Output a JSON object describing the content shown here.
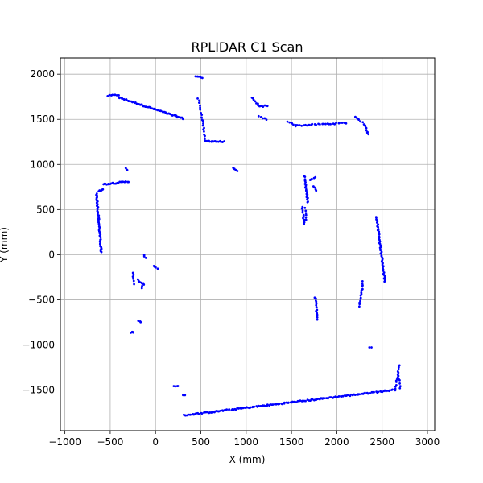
{
  "chart_data": {
    "type": "scatter",
    "title": "RPLIDAR C1 Scan",
    "xlabel": "X (mm)",
    "ylabel": "Y (mm)",
    "xlim": [
      -1050,
      3080
    ],
    "ylim": [
      -1950,
      2180
    ],
    "xticks": [
      -1000,
      -500,
      0,
      500,
      1000,
      1500,
      2000,
      2500,
      3000
    ],
    "yticks": [
      -1500,
      -1000,
      -500,
      0,
      500,
      1000,
      1500,
      2000
    ],
    "grid": true,
    "point_color": "#0000ff",
    "segments": [
      {
        "from": [
          -530,
          1760
        ],
        "to": [
          -410,
          1770
        ],
        "n": 7
      },
      {
        "from": [
          -400,
          1740
        ],
        "to": [
          300,
          1510
        ],
        "n": 60
      },
      {
        "from": [
          440,
          1980
        ],
        "to": [
          520,
          1960
        ],
        "n": 5
      },
      {
        "from": [
          470,
          1730
        ],
        "to": [
          520,
          1500
        ],
        "n": 10
      },
      {
        "from": [
          520,
          1480
        ],
        "to": [
          550,
          1260
        ],
        "n": 10
      },
      {
        "from": [
          560,
          1260
        ],
        "to": [
          760,
          1250
        ],
        "n": 16
      },
      {
        "from": [
          850,
          970
        ],
        "to": [
          900,
          920
        ],
        "n": 5
      },
      {
        "from": [
          1060,
          1740
        ],
        "to": [
          1150,
          1640
        ],
        "n": 8
      },
      {
        "from": [
          1150,
          1640
        ],
        "to": [
          1230,
          1650
        ],
        "n": 5
      },
      {
        "from": [
          1140,
          1530
        ],
        "to": [
          1220,
          1500
        ],
        "n": 5
      },
      {
        "from": [
          1460,
          1480
        ],
        "to": [
          1550,
          1430
        ],
        "n": 5
      },
      {
        "from": [
          1550,
          1430
        ],
        "to": [
          2100,
          1460
        ],
        "n": 28
      },
      {
        "from": [
          2200,
          1530
        ],
        "to": [
          2280,
          1470
        ],
        "n": 6
      },
      {
        "from": [
          2300,
          1450
        ],
        "to": [
          2350,
          1330
        ],
        "n": 8
      },
      {
        "from": [
          -650,
          680
        ],
        "to": [
          -600,
          30
        ],
        "n": 55
      },
      {
        "from": [
          -630,
          700
        ],
        "to": [
          -580,
          730
        ],
        "n": 6
      },
      {
        "from": [
          -580,
          780
        ],
        "to": [
          -300,
          810
        ],
        "n": 22
      },
      {
        "from": [
          -330,
          960
        ],
        "to": [
          -310,
          940
        ],
        "n": 3
      },
      {
        "from": [
          -130,
          0
        ],
        "to": [
          -110,
          -40
        ],
        "n": 3
      },
      {
        "from": [
          -20,
          -130
        ],
        "to": [
          20,
          -150
        ],
        "n": 4
      },
      {
        "from": [
          -250,
          -200
        ],
        "to": [
          -240,
          -320
        ],
        "n": 6
      },
      {
        "from": [
          -200,
          -280
        ],
        "to": [
          -130,
          -330
        ],
        "n": 8
      },
      {
        "from": [
          -150,
          -370
        ],
        "to": [
          -140,
          -320
        ],
        "n": 3
      },
      {
        "from": [
          -270,
          -860
        ],
        "to": [
          -240,
          -860
        ],
        "n": 4
      },
      {
        "from": [
          -190,
          -740
        ],
        "to": [
          -160,
          -750
        ],
        "n": 3
      },
      {
        "from": [
          1640,
          870
        ],
        "to": [
          1680,
          580
        ],
        "n": 22
      },
      {
        "from": [
          1620,
          530
        ],
        "to": [
          1640,
          340
        ],
        "n": 10
      },
      {
        "from": [
          1650,
          520
        ],
        "to": [
          1660,
          380
        ],
        "n": 6
      },
      {
        "from": [
          1700,
          830
        ],
        "to": [
          1760,
          860
        ],
        "n": 5
      },
      {
        "from": [
          1740,
          760
        ],
        "to": [
          1770,
          710
        ],
        "n": 4
      },
      {
        "from": [
          1760,
          -470
        ],
        "to": [
          1790,
          -720
        ],
        "n": 14
      },
      {
        "from": [
          2250,
          -570
        ],
        "to": [
          2290,
          -300
        ],
        "n": 15
      },
      {
        "from": [
          2440,
          420
        ],
        "to": [
          2530,
          -300
        ],
        "n": 55
      },
      {
        "from": [
          2360,
          -1030
        ],
        "to": [
          2380,
          -1020
        ],
        "n": 2
      },
      {
        "from": [
          200,
          -1460
        ],
        "to": [
          250,
          -1450
        ],
        "n": 4
      },
      {
        "from": [
          310,
          -1560
        ],
        "to": [
          330,
          -1560
        ],
        "n": 2
      },
      {
        "from": [
          310,
          -1780
        ],
        "to": [
          2620,
          -1500
        ],
        "n": 160
      },
      {
        "from": [
          2640,
          -1500
        ],
        "to": [
          2690,
          -1230
        ],
        "n": 14
      },
      {
        "from": [
          2680,
          -1340
        ],
        "to": [
          2700,
          -1480
        ],
        "n": 6
      }
    ]
  }
}
